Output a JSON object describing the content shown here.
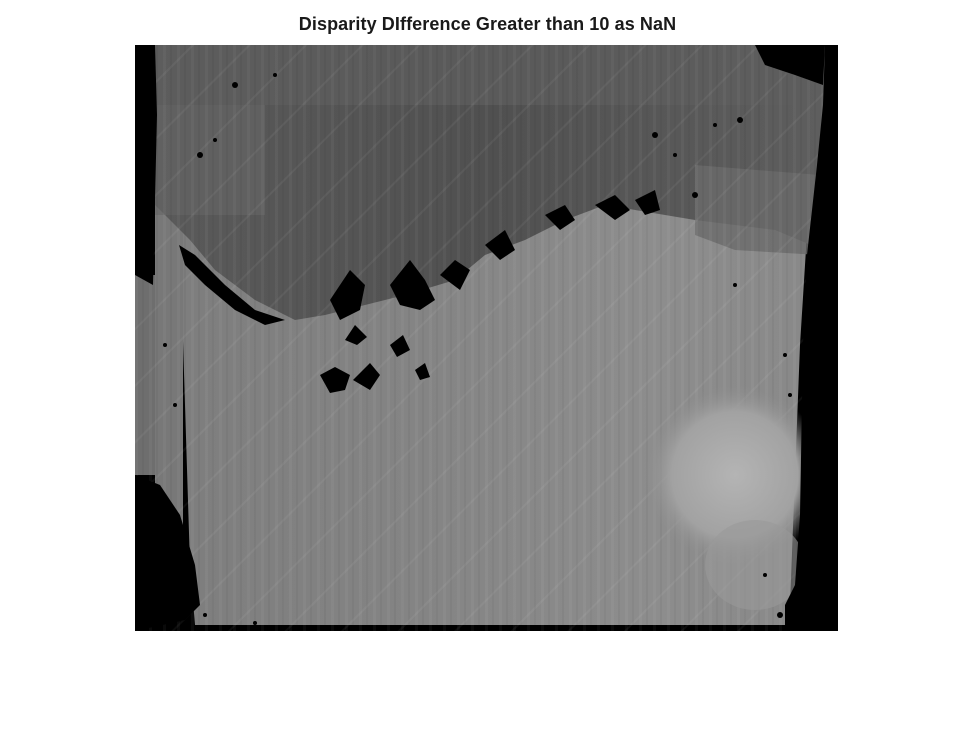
{
  "figure": {
    "title": "Disparity DIfference Greater than 10 as NaN"
  },
  "image": {
    "kind": "grayscale disparity map",
    "nan_color": "#000000",
    "colors": {
      "far_region": "#555555",
      "mid_region": "#7a7a7a",
      "near_region": "#8a8a8a",
      "bright_patch": "#b0b0b0"
    }
  }
}
